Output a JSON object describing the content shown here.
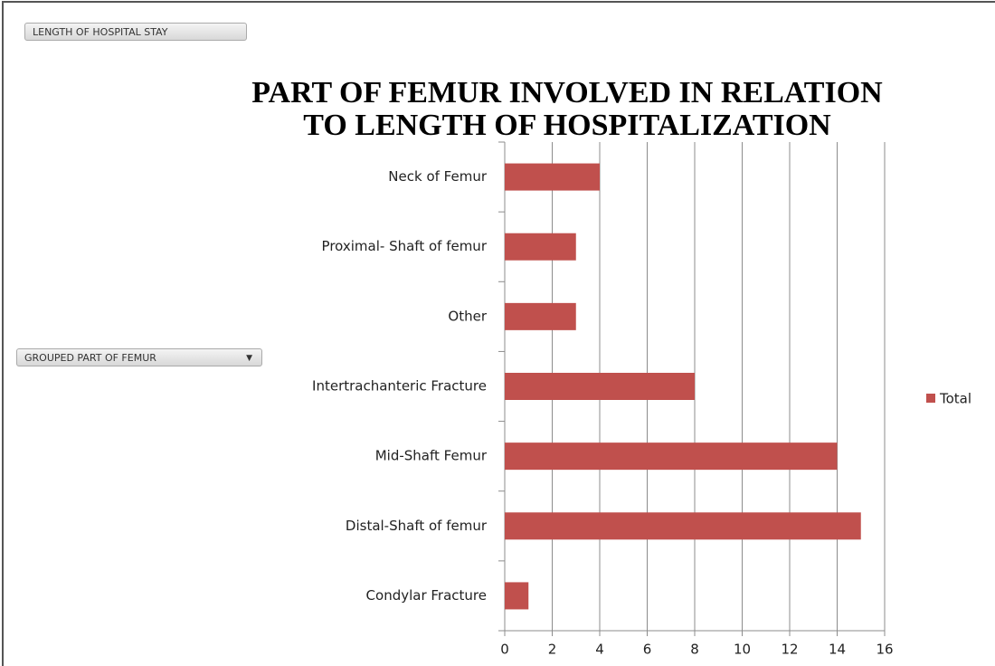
{
  "controls": {
    "row_field": "LENGTH OF HOSPITAL STAY",
    "axis_field": "GROUPED PART OF FEMUR"
  },
  "chart_data": {
    "type": "hbar",
    "title": [
      "PART OF FEMUR INVOLVED IN RELATION",
      "TO LENGTH OF HOSPITALIZATION"
    ],
    "categories": [
      "Neck of Femur",
      "Proximal- Shaft of femur",
      "Other",
      "Intertrachanteric Fracture",
      "Mid-Shaft Femur",
      "Distal-Shaft of femur",
      "Condylar Fracture"
    ],
    "series": [
      {
        "name": "Total",
        "color": "#c0504d",
        "values": [
          4,
          3,
          3,
          8,
          14,
          15,
          1
        ]
      }
    ],
    "xlim": [
      0,
      16
    ],
    "xticks": [
      0,
      2,
      4,
      6,
      8,
      10,
      12,
      14,
      16
    ],
    "grid": true,
    "legend": "right"
  }
}
